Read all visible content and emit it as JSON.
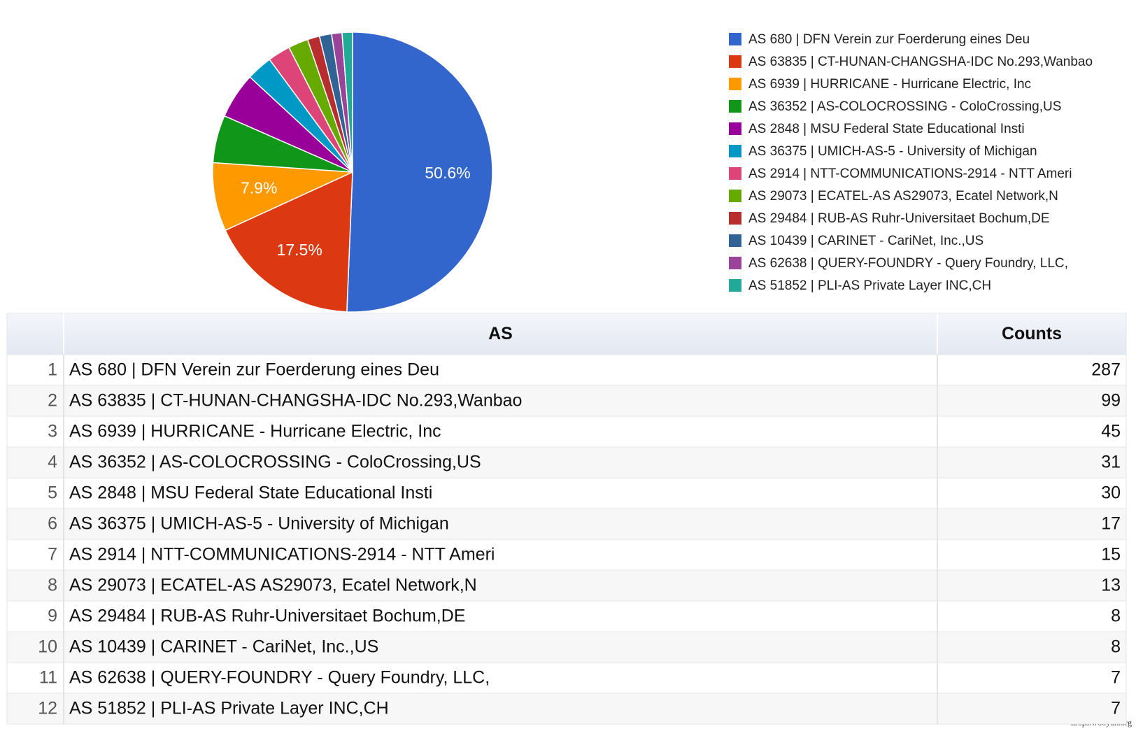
{
  "chart_data": {
    "type": "pie",
    "categories": [
      "AS 680 | DFN Verein zur Foerderung eines Deu",
      "AS 63835 | CT-HUNAN-CHANGSHA-IDC No.293,Wanbao",
      "AS 6939 | HURRICANE - Hurricane Electric, Inc",
      "AS 36352 | AS-COLOCROSSING - ColoCrossing,US",
      "AS 2848 | MSU Federal State Educational Insti",
      "AS 36375 | UMICH-AS-5 - University of Michigan",
      "AS 2914 | NTT-COMMUNICATIONS-2914 - NTT Ameri",
      "AS 29073 | ECATEL-AS AS29073, Ecatel Network,N",
      "AS 29484 | RUB-AS Ruhr-Universitaet Bochum,DE",
      "AS 10439 | CARINET - CariNet, Inc.,US",
      "AS 62638 | QUERY-FOUNDRY - Query Foundry, LLC,",
      "AS 51852 | PLI-AS Private Layer INC,CH"
    ],
    "values": [
      50.6,
      17.5,
      7.9,
      5.5,
      5.3,
      3.0,
      2.6,
      2.3,
      1.4,
      1.4,
      1.2,
      1.2
    ],
    "value_labels": [
      "50.6%",
      "17.5%",
      "7.9%",
      null,
      null,
      null,
      null,
      null,
      null,
      null,
      null,
      null
    ],
    "colors": [
      "#3366cc",
      "#dc3912",
      "#ff9900",
      "#109618",
      "#990099",
      "#0099c6",
      "#dd4477",
      "#66aa00",
      "#b82e2e",
      "#316395",
      "#994499",
      "#22aa99"
    ],
    "legend": "right"
  },
  "table": {
    "header": [
      "AS",
      "Counts"
    ],
    "rows": [
      [
        1,
        "AS 680 | DFN Verein zur Foerderung eines Deu",
        287
      ],
      [
        2,
        "AS 63835 | CT-HUNAN-CHANGSHA-IDC No.293,Wanbao",
        99
      ],
      [
        3,
        "AS 6939 | HURRICANE - Hurricane Electric, Inc",
        45
      ],
      [
        4,
        "AS 36352 | AS-COLOCROSSING - ColoCrossing,US",
        31
      ],
      [
        5,
        "AS 2848 | MSU Federal State Educational Insti",
        30
      ],
      [
        6,
        "AS 36375 | UMICH-AS-5 - University of Michigan",
        17
      ],
      [
        7,
        "AS 2914 | NTT-COMMUNICATIONS-2914 - NTT Ameri",
        15
      ],
      [
        8,
        "AS 29073 | ECATEL-AS AS29073, Ecatel Network,N",
        13
      ],
      [
        9,
        "AS 29484 | RUB-AS Ruhr-Universitaet Bochum,DE",
        8
      ],
      [
        10,
        "AS 10439 | CARINET - CariNet, Inc.,US",
        8
      ],
      [
        11,
        "AS 62638 | QUERY-FOUNDRY - Query Foundry, LLC,",
        7
      ],
      [
        12,
        "AS 51852 | PLI-AS Private Layer INC,CH",
        7
      ]
    ]
  },
  "watermark": "drops.wooyun.org"
}
